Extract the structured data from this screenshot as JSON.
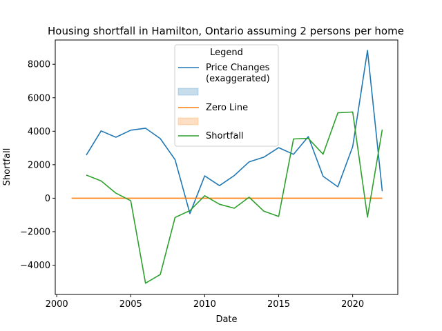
{
  "chart_data": {
    "type": "line",
    "title": "Housing shortfall in Hamilton, Ontario assuming 2 persons per home",
    "xlabel": "Date",
    "ylabel": "Shortfall",
    "xlim": [
      1999.9,
      2023.05
    ],
    "ylim": [
      -5750,
      9450
    ],
    "xticks": [
      2000,
      2005,
      2010,
      2015,
      2020
    ],
    "yticks": [
      -4000,
      -2000,
      0,
      2000,
      4000,
      6000,
      8000
    ],
    "grid": false,
    "legend": {
      "title": "Legend",
      "placement": "upper-center",
      "entries": [
        {
          "label": "Price Changes\n(exaggerated)",
          "kind": "line",
          "color": "#1f77b4"
        },
        {
          "label": "",
          "kind": "patch",
          "color": "#1f77b4"
        },
        {
          "label": "Zero Line",
          "kind": "line",
          "color": "#ff7f0e"
        },
        {
          "label": "",
          "kind": "patch",
          "color": "#ff7f0e"
        },
        {
          "label": "Shortfall",
          "kind": "line",
          "color": "#2ca02c"
        }
      ]
    },
    "series": [
      {
        "name": "Price Changes (exaggerated)",
        "color": "#1f77b4",
        "x": [
          2002,
          2003,
          2004,
          2005,
          2006,
          2007,
          2008,
          2009,
          2010,
          2011,
          2012,
          2013,
          2014,
          2015,
          2016,
          2017,
          2018,
          2019,
          2020,
          2021,
          2022
        ],
        "y": [
          2580,
          4020,
          3640,
          4060,
          4180,
          3560,
          2300,
          -920,
          1330,
          750,
          1350,
          2170,
          2450,
          3020,
          2620,
          3680,
          1310,
          680,
          3080,
          8830,
          420
        ]
      },
      {
        "name": "Zero Line",
        "color": "#ff7f0e",
        "x": [
          2001,
          2022
        ],
        "y": [
          0,
          0
        ]
      },
      {
        "name": "Shortfall",
        "color": "#2ca02c",
        "x": [
          2002,
          2003,
          2004,
          2005,
          2006,
          2007,
          2008,
          2009,
          2010,
          2011,
          2012,
          2013,
          2014,
          2015,
          2016,
          2017,
          2018,
          2019,
          2020,
          2021,
          2022
        ],
        "y": [
          1380,
          1030,
          300,
          -150,
          -5080,
          -4560,
          -1150,
          -740,
          150,
          -360,
          -600,
          60,
          -780,
          -1090,
          3540,
          3570,
          2630,
          5100,
          5150,
          -1130,
          4100
        ]
      }
    ]
  }
}
